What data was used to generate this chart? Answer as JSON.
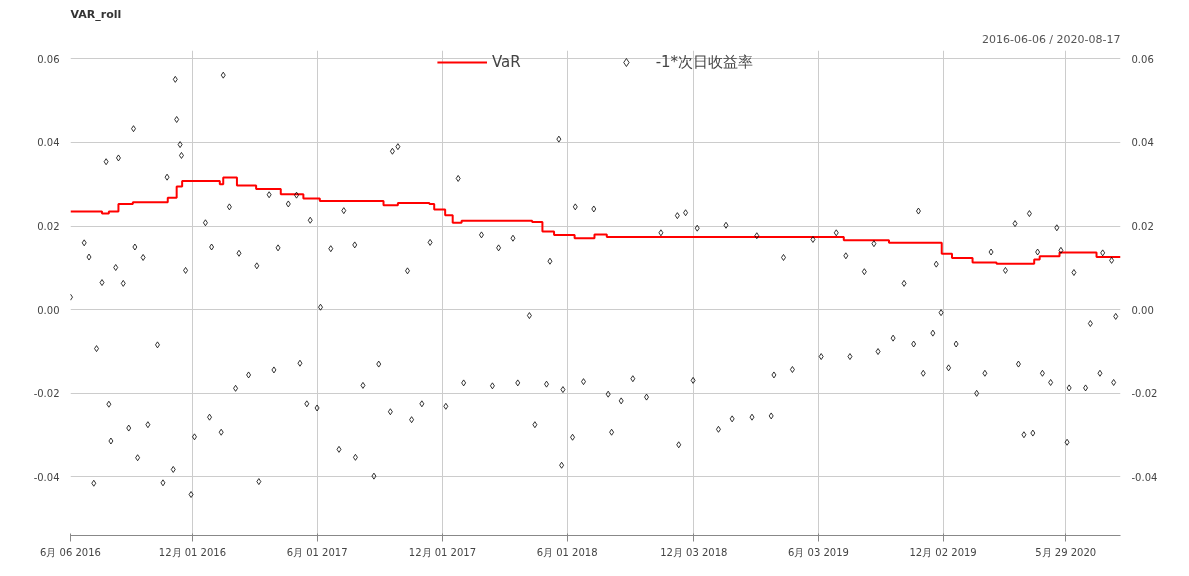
{
  "chart_data": {
    "type": "scatter",
    "title": "VAR_roll",
    "annotations": [
      "2016-06-06 / 2020-08-17"
    ],
    "xlim": [
      "2016-06-06",
      "2020-08-17"
    ],
    "xticks": [
      {
        "value": "2016-06-06",
        "label": "6月 06 2016"
      },
      {
        "value": "2016-12-01",
        "label": "12月 01 2016"
      },
      {
        "value": "2017-06-01",
        "label": "6月 01 2017"
      },
      {
        "value": "2017-12-01",
        "label": "12月 01 2017"
      },
      {
        "value": "2018-06-01",
        "label": "6月 01 2018"
      },
      {
        "value": "2018-12-03",
        "label": "12月 03 2018"
      },
      {
        "value": "2019-06-03",
        "label": "6月 03 2019"
      },
      {
        "value": "2019-12-02",
        "label": "12月 02 2019"
      },
      {
        "value": "2020-05-29",
        "label": "5月 29 2020"
      }
    ],
    "ylim": [
      -0.054,
      0.062
    ],
    "yticks": [
      {
        "value": -0.04,
        "label": "-0.04"
      },
      {
        "value": -0.02,
        "label": "-0.02"
      },
      {
        "value": 0,
        "label": "0.00"
      },
      {
        "value": 0.02,
        "label": "0.02"
      },
      {
        "value": 0.04,
        "label": "0.04"
      },
      {
        "value": 0.06,
        "label": "0.06"
      }
    ],
    "y2lim": [
      -0.054,
      0.062
    ],
    "y2ticks": [
      {
        "value": -0.04,
        "label": "-0.04"
      },
      {
        "value": -0.02,
        "label": "-0.02"
      },
      {
        "value": 0,
        "label": "0.00"
      },
      {
        "value": 0.02,
        "label": "0.02"
      },
      {
        "value": 0.04,
        "label": "0.04"
      },
      {
        "value": 0.06,
        "label": "0.06"
      }
    ],
    "grid": true,
    "legend": "top",
    "series": [
      {
        "name": "VaR",
        "type": "step",
        "color": "#ff0000",
        "line_style": "solid",
        "marker": "none",
        "x": [
          "2016-06-06",
          "2016-07-22",
          "2016-08-01",
          "2016-08-15",
          "2016-09-05",
          "2016-10-26",
          "2016-11-08",
          "2016-11-16",
          "2017-01-10",
          "2017-01-15",
          "2017-02-04",
          "2017-03-04",
          "2017-04-09",
          "2017-05-12",
          "2017-06-05",
          "2017-09-06",
          "2017-09-27",
          "2017-11-12",
          "2017-11-19",
          "2017-12-05",
          "2017-12-16",
          "2017-12-29",
          "2018-04-11",
          "2018-04-26",
          "2018-05-13",
          "2018-06-12",
          "2018-07-11",
          "2018-07-29",
          "2019-07-10",
          "2019-09-14",
          "2019-11-30",
          "2019-12-15",
          "2020-01-14",
          "2020-02-18",
          "2020-04-13",
          "2020-04-21",
          "2020-05-20",
          "2020-07-13",
          "2020-08-17"
        ],
        "values": [
          0.0235,
          0.023,
          0.0235,
          0.0253,
          0.0257,
          0.0268,
          0.0295,
          0.0308,
          0.03,
          0.0316,
          0.0297,
          0.0289,
          0.0276,
          0.0266,
          0.026,
          0.025,
          0.0255,
          0.0253,
          0.024,
          0.0226,
          0.0208,
          0.0213,
          0.021,
          0.0187,
          0.0179,
          0.0171,
          0.018,
          0.0174,
          0.0166,
          0.016,
          0.0134,
          0.0124,
          0.0113,
          0.011,
          0.012,
          0.0128,
          0.0137,
          0.0126,
          0.0126
        ]
      },
      {
        "name": "-1*次日收益率",
        "type": "scatter",
        "color": "#000000",
        "marker": "diamond",
        "x": [
          "2016-06-06",
          "2016-06-26",
          "2016-07-03",
          "2016-07-10",
          "2016-07-14",
          "2016-07-22",
          "2016-07-28",
          "2016-08-01",
          "2016-08-04",
          "2016-08-11",
          "2016-08-15",
          "2016-08-22",
          "2016-08-30",
          "2016-09-06",
          "2016-09-08",
          "2016-09-12",
          "2016-09-20",
          "2016-09-27",
          "2016-10-11",
          "2016-10-19",
          "2016-10-25",
          "2016-11-03",
          "2016-11-06",
          "2016-11-08",
          "2016-11-13",
          "2016-11-15",
          "2016-11-21",
          "2016-11-29",
          "2016-12-04",
          "2016-12-20",
          "2016-12-26",
          "2016-12-29",
          "2017-01-12",
          "2017-01-15",
          "2017-01-24",
          "2017-02-02",
          "2017-02-07",
          "2017-02-21",
          "2017-03-05",
          "2017-03-08",
          "2017-03-23",
          "2017-03-30",
          "2017-04-05",
          "2017-04-20",
          "2017-05-02",
          "2017-05-07",
          "2017-05-17",
          "2017-05-22",
          "2017-06-01",
          "2017-06-06",
          "2017-06-21",
          "2017-07-03",
          "2017-07-10",
          "2017-07-26",
          "2017-07-27",
          "2017-08-07",
          "2017-08-23",
          "2017-08-30",
          "2017-09-16",
          "2017-09-19",
          "2017-09-27",
          "2017-10-11",
          "2017-10-17",
          "2017-11-01",
          "2017-11-13",
          "2017-12-06",
          "2017-12-24",
          "2018-01-01",
          "2018-01-27",
          "2018-02-12",
          "2018-02-21",
          "2018-03-14",
          "2018-03-21",
          "2018-04-07",
          "2018-04-15",
          "2018-05-02",
          "2018-05-07",
          "2018-05-20",
          "2018-05-24",
          "2018-05-26",
          "2018-06-09",
          "2018-06-13",
          "2018-06-25",
          "2018-07-10",
          "2018-07-31",
          "2018-08-05",
          "2018-08-19",
          "2018-09-05",
          "2018-09-25",
          "2018-10-16",
          "2018-11-09",
          "2018-11-11",
          "2018-11-21",
          "2018-12-02",
          "2018-12-08",
          "2019-01-08",
          "2019-01-19",
          "2019-01-28",
          "2019-02-26",
          "2019-03-05",
          "2019-03-26",
          "2019-03-30",
          "2019-04-13",
          "2019-04-26",
          "2019-05-26",
          "2019-06-07",
          "2019-06-29",
          "2019-07-13",
          "2019-07-19",
          "2019-08-09",
          "2019-08-23",
          "2019-08-29",
          "2019-09-20",
          "2019-10-06",
          "2019-10-20",
          "2019-10-27",
          "2019-11-03",
          "2019-11-17",
          "2019-11-22",
          "2019-11-29",
          "2019-12-10",
          "2019-12-21",
          "2020-01-20",
          "2020-02-01",
          "2020-02-10",
          "2020-03-02",
          "2020-03-16",
          "2020-03-21",
          "2020-03-29",
          "2020-04-06",
          "2020-04-11",
          "2020-04-18",
          "2020-04-25",
          "2020-05-07",
          "2020-05-16",
          "2020-05-22",
          "2020-05-31",
          "2020-06-03",
          "2020-06-10",
          "2020-06-27",
          "2020-07-04",
          "2020-07-18",
          "2020-07-22",
          "2020-08-04",
          "2020-08-07",
          "2020-08-10"
        ],
        "values": [
          0.003,
          0.016,
          0.0126,
          -0.0415,
          -0.0093,
          0.0065,
          0.0354,
          -0.0226,
          -0.0314,
          0.0101,
          0.0363,
          0.0063,
          -0.0283,
          0.0433,
          0.015,
          -0.0354,
          0.0125,
          -0.0275,
          -0.0084,
          -0.0414,
          0.0317,
          -0.0382,
          0.0551,
          0.0455,
          0.0395,
          0.0369,
          0.0094,
          -0.0442,
          -0.0304,
          0.0208,
          -0.0257,
          0.015,
          -0.0293,
          0.0561,
          0.0246,
          -0.0188,
          0.0135,
          -0.0156,
          0.0105,
          -0.0411,
          0.0275,
          -0.0144,
          0.0148,
          0.0253,
          0.0274,
          -0.0128,
          -0.0225,
          0.0214,
          -0.0235,
          0.0006,
          0.0146,
          -0.0334,
          0.0237,
          0.0155,
          -0.0353,
          -0.0181,
          -0.0398,
          -0.013,
          -0.0244,
          0.0379,
          0.039,
          0.0093,
          -0.0263,
          -0.0225,
          0.0161,
          -0.0231,
          0.0314,
          -0.0175,
          0.0179,
          -0.0182,
          0.0148,
          0.0171,
          -0.0175,
          -0.0014,
          -0.0275,
          -0.0178,
          0.0116,
          0.0408,
          -0.0372,
          -0.0191,
          -0.0305,
          0.0246,
          -0.0172,
          0.0241,
          -0.0202,
          -0.0293,
          -0.0218,
          -0.0165,
          -0.0209,
          0.0184,
          0.0225,
          -0.0323,
          0.0232,
          -0.0169,
          0.0195,
          -0.0286,
          0.0202,
          -0.0261,
          -0.0257,
          0.0177,
          -0.0254,
          -0.0156,
          0.0125,
          -0.0143,
          0.0168,
          -0.0112,
          0.0184,
          0.0129,
          -0.0112,
          0.0091,
          0.0158,
          -0.01,
          -0.0068,
          0.0063,
          -0.0082,
          0.0236,
          -0.0152,
          -0.0056,
          0.0109,
          -0.0007,
          -0.0139,
          -0.0082,
          -0.02,
          -0.0152,
          0.0138,
          0.0094,
          0.0206,
          -0.013,
          -0.0299,
          0.023,
          -0.0295,
          0.0138,
          -0.0152,
          -0.0174,
          0.0196,
          0.0142,
          -0.0317,
          -0.0187,
          0.0089,
          -0.0187,
          -0.0033,
          -0.0152,
          0.0136,
          0.0118,
          -0.0174,
          -0.0016
        ]
      }
    ]
  }
}
